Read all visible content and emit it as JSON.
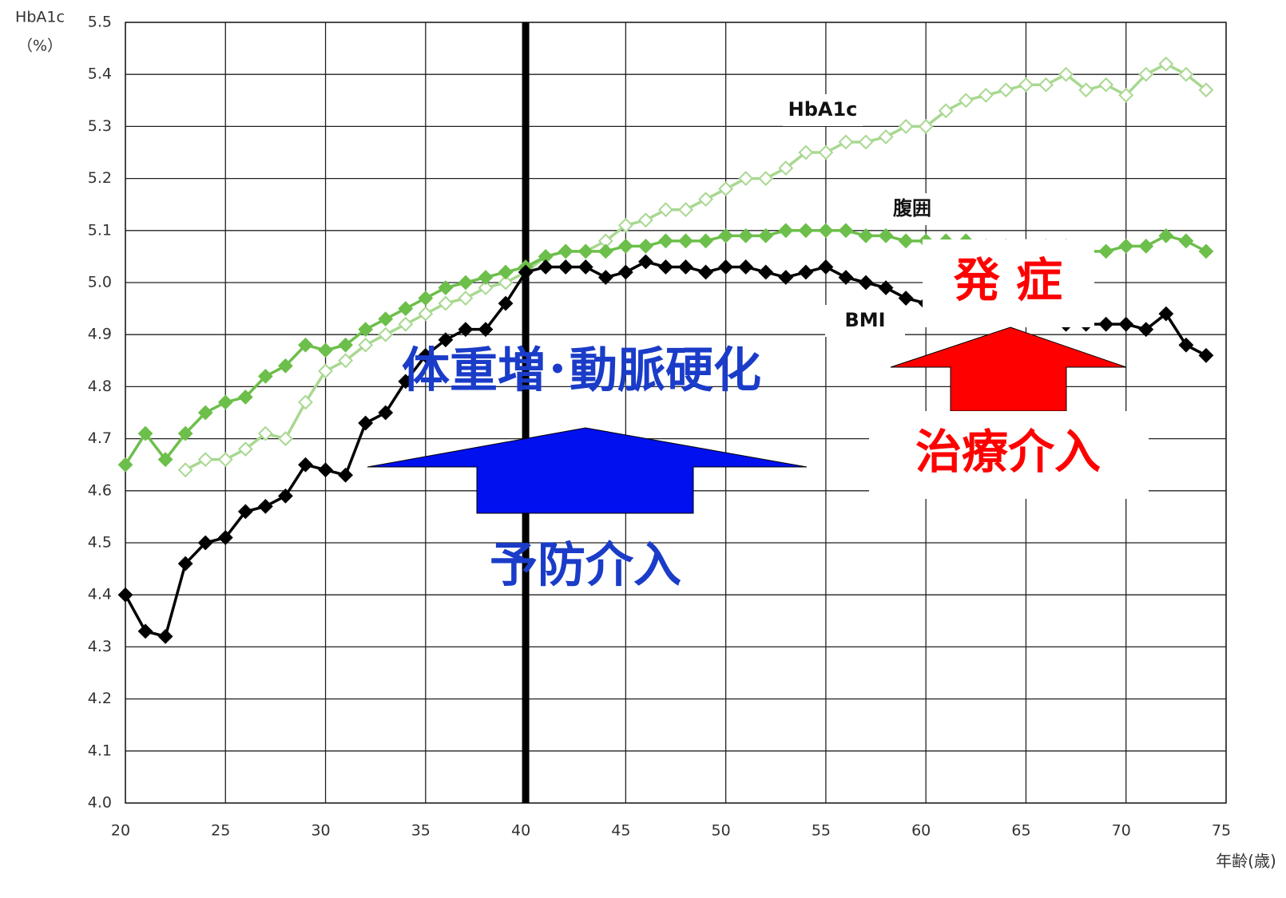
{
  "chart_data": {
    "type": "line",
    "y_label": "HbA1c",
    "y_unit": "（%）",
    "x_label": "年齢(歳)",
    "x": [
      20,
      21,
      22,
      23,
      24,
      25,
      26,
      27,
      28,
      29,
      30,
      31,
      32,
      33,
      34,
      35,
      36,
      37,
      38,
      39,
      40,
      41,
      42,
      43,
      44,
      45,
      46,
      47,
      48,
      49,
      50,
      51,
      52,
      53,
      54,
      55,
      56,
      57,
      58,
      59,
      60,
      61,
      62,
      63,
      64,
      65,
      66,
      67,
      68,
      69,
      70,
      71,
      72,
      73,
      74
    ],
    "series": [
      {
        "name": "HbA1c",
        "color": "#a8d890",
        "marker": "open",
        "values": [
          null,
          null,
          null,
          4.64,
          4.66,
          4.66,
          4.68,
          4.71,
          4.7,
          4.77,
          4.83,
          4.85,
          4.88,
          4.9,
          4.92,
          4.94,
          4.96,
          4.97,
          4.99,
          5.0,
          5.02,
          5.05,
          5.06,
          5.06,
          5.08,
          5.11,
          5.12,
          5.14,
          5.14,
          5.16,
          5.18,
          5.2,
          5.2,
          5.22,
          5.25,
          5.25,
          5.27,
          5.27,
          5.28,
          5.3,
          5.3,
          5.33,
          5.35,
          5.36,
          5.37,
          5.38,
          5.38,
          5.4,
          5.37,
          5.38,
          5.36,
          5.4,
          5.42,
          5.4,
          5.37
        ]
      },
      {
        "name": "腹囲",
        "color": "#6cbf4a",
        "marker": "filled",
        "values": [
          4.65,
          4.71,
          4.66,
          4.71,
          4.75,
          4.77,
          4.78,
          4.82,
          4.84,
          4.88,
          4.87,
          4.88,
          4.91,
          4.93,
          4.95,
          4.97,
          4.99,
          5.0,
          5.01,
          5.02,
          5.03,
          5.05,
          5.06,
          5.06,
          5.06,
          5.07,
          5.07,
          5.08,
          5.08,
          5.08,
          5.09,
          5.09,
          5.09,
          5.1,
          5.1,
          5.1,
          5.1,
          5.09,
          5.09,
          5.08,
          5.08,
          5.08,
          5.08,
          5.07,
          5.07,
          5.07,
          5.07,
          5.07,
          5.06,
          5.06,
          5.07,
          5.07,
          5.09,
          5.08,
          5.06
        ]
      },
      {
        "name": "BMI",
        "color": "#000000",
        "marker": "filled",
        "values": [
          4.4,
          4.33,
          4.32,
          4.46,
          4.5,
          4.51,
          4.56,
          4.57,
          4.59,
          4.65,
          4.64,
          4.63,
          4.73,
          4.75,
          4.81,
          4.86,
          4.89,
          4.91,
          4.91,
          4.96,
          5.02,
          5.03,
          5.03,
          5.03,
          5.01,
          5.02,
          5.04,
          5.03,
          5.03,
          5.02,
          5.03,
          5.03,
          5.02,
          5.01,
          5.02,
          5.03,
          5.01,
          5.0,
          4.99,
          4.97,
          4.96,
          4.95,
          4.95,
          4.94,
          4.94,
          4.93,
          4.93,
          4.92,
          4.92,
          4.92,
          4.92,
          4.91,
          4.94,
          4.88,
          4.86
        ]
      }
    ],
    "xlim": [
      20,
      75
    ],
    "xticks": [
      20,
      25,
      30,
      35,
      40,
      45,
      50,
      55,
      60,
      65,
      70,
      75
    ],
    "ylim": [
      4.0,
      5.5
    ],
    "yticks": [
      {
        "value": 4,
        "label": "4.0"
      },
      4.1,
      4.2,
      4.3,
      4.4,
      4.5,
      4.6,
      4.7,
      4.8,
      4.9,
      {
        "value": 5,
        "label": "5.0"
      },
      5.1,
      5.2,
      5.3,
      5.4,
      5.5
    ],
    "grid": true,
    "marker_line_x": 40,
    "annotations": [
      {
        "text": "体重増･動脈硬化",
        "color": "#1a3cc8"
      },
      {
        "text": "予防介入",
        "color": "#1a3cc8"
      },
      {
        "text": "発 症",
        "color": "#ff0000"
      },
      {
        "text": "治療介入",
        "color": "#ff0000"
      }
    ]
  }
}
